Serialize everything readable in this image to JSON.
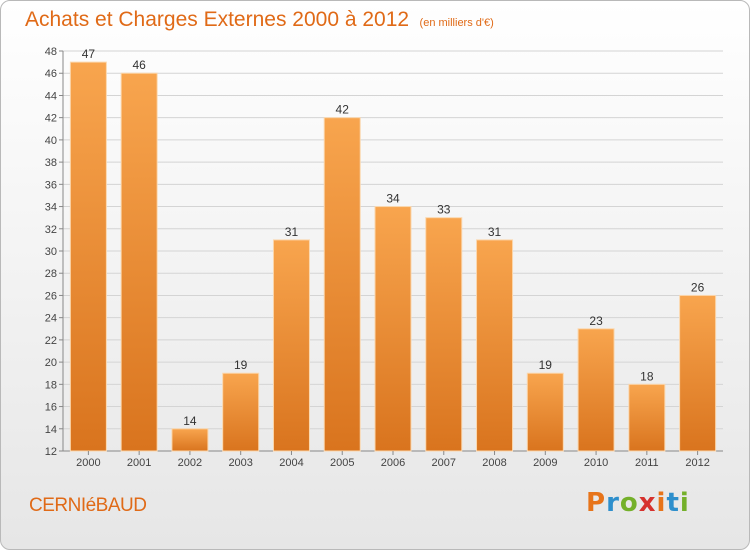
{
  "header": {
    "title": "Achats et Charges Externes 2000 à 2012",
    "unit": "(en milliers d'€)"
  },
  "place": "CERNIéBAUD",
  "logo": {
    "letters": [
      "P",
      "r",
      "o",
      "x",
      "i",
      "t",
      "i"
    ],
    "colors": [
      "#e7741a",
      "#2e8fcc",
      "#74b02a",
      "#d6312d",
      "#e7741a",
      "#2e8fcc",
      "#74b02a"
    ]
  },
  "colors": {
    "bar_light": "#f8a54e",
    "bar_dark": "#d9741e",
    "accent": "#e06a17"
  },
  "chart_data": {
    "type": "bar",
    "categories": [
      "2000",
      "2001",
      "2002",
      "2003",
      "2004",
      "2005",
      "2006",
      "2007",
      "2008",
      "2009",
      "2010",
      "2011",
      "2012"
    ],
    "values": [
      47,
      46,
      14,
      19,
      31,
      42,
      34,
      33,
      31,
      19,
      23,
      18,
      26
    ],
    "data_labels": [
      "47",
      "46",
      "14",
      "19",
      "31",
      "42",
      "34",
      "33",
      "31",
      "19",
      "23",
      "18",
      "26"
    ],
    "ylim": [
      12,
      48
    ],
    "yticks": [
      "12",
      "14",
      "16",
      "18",
      "20",
      "22",
      "24",
      "26",
      "28",
      "30",
      "32",
      "34",
      "36",
      "38",
      "40",
      "42",
      "44",
      "46",
      "48"
    ],
    "grid": true,
    "title": "Achats et Charges Externes 2000 à 2012",
    "xlabel": "",
    "ylabel": ""
  }
}
